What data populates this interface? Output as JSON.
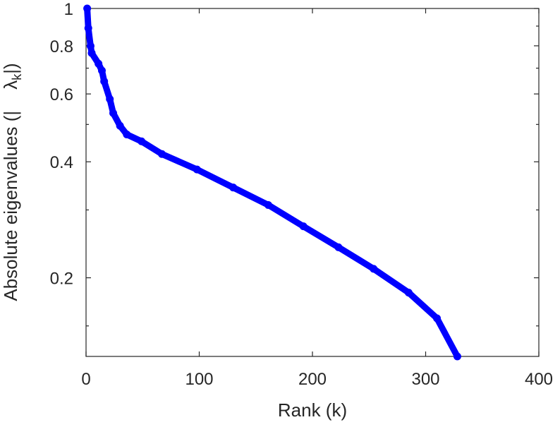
{
  "chart_data": {
    "type": "line",
    "title": "",
    "xlabel": "Rank (k)",
    "ylabel": "Absolute eigenvalues (|",
    "ylabel_symbol": "λ",
    "ylabel_sub": "k",
    "ylabel_end": "|)",
    "xlim": [
      0,
      400
    ],
    "ylim": [
      0.125,
      1
    ],
    "yscale": "log",
    "grid": false,
    "xticks": [
      0,
      100,
      200,
      300,
      400
    ],
    "xtick_labels": [
      "0",
      "100",
      "200",
      "300",
      "400"
    ],
    "yticks": [
      0.2,
      0.4,
      0.6,
      0.8,
      1
    ],
    "ytick_labels": [
      "0.2",
      "0.4",
      "0.6",
      "0.8",
      "1"
    ],
    "yminor_ticks": [
      0.15,
      0.3,
      0.5,
      0.7,
      0.9
    ],
    "series": [
      {
        "name": "eigenvalues",
        "color": "#0000ff",
        "marker": "circle",
        "x": [
          1,
          2,
          4,
          5,
          11,
          14,
          16,
          21,
          24,
          30,
          36,
          49,
          67,
          98,
          130,
          161,
          192,
          223,
          254,
          285,
          310,
          328
        ],
        "y": [
          1.0,
          0.889,
          0.799,
          0.766,
          0.719,
          0.69,
          0.647,
          0.582,
          0.535,
          0.496,
          0.471,
          0.452,
          0.419,
          0.382,
          0.343,
          0.309,
          0.272,
          0.24,
          0.211,
          0.183,
          0.157,
          0.125
        ]
      }
    ]
  }
}
